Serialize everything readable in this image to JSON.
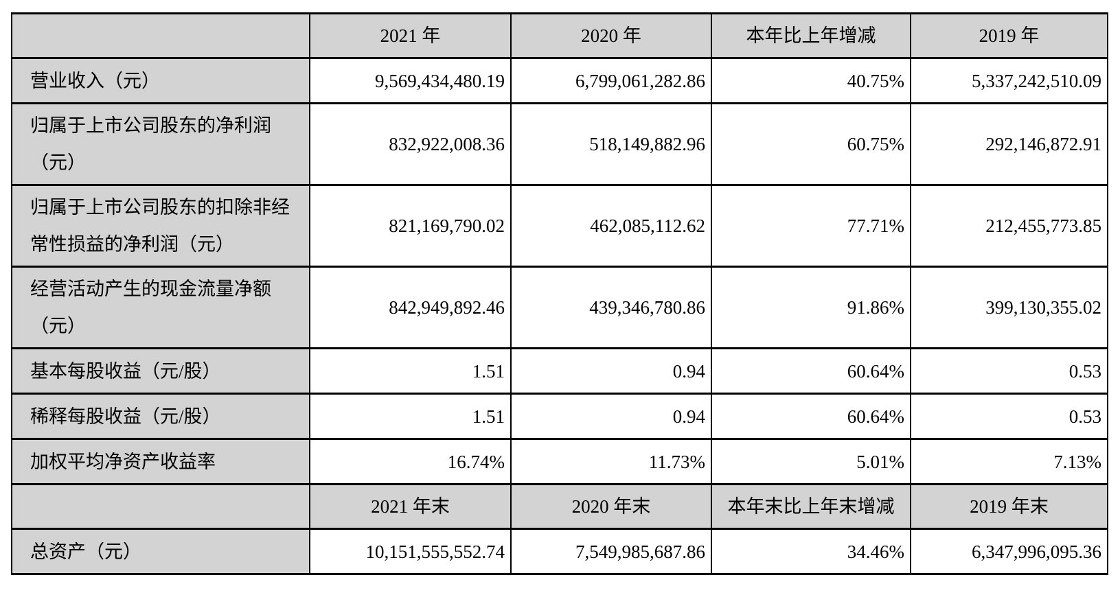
{
  "colors": {
    "header_bg": "#d3d3d3",
    "label_bg": "#d3d3d3",
    "cell_bg": "#ffffff",
    "border": "#000000",
    "text": "#000000"
  },
  "table": {
    "period1": {
      "corner": "",
      "headers": [
        "2021 年",
        "2020 年",
        "本年比上年增减",
        "2019 年"
      ],
      "rows": [
        {
          "label": "营业收入（元）",
          "values": [
            "9,569,434,480.19",
            "6,799,061,282.86",
            "40.75%",
            "5,337,242,510.09"
          ]
        },
        {
          "label": "归属于上市公司股东的净利润（元）",
          "values": [
            "832,922,008.36",
            "518,149,882.96",
            "60.75%",
            "292,146,872.91"
          ]
        },
        {
          "label": "归属于上市公司股东的扣除非经常性损益的净利润（元）",
          "values": [
            "821,169,790.02",
            "462,085,112.62",
            "77.71%",
            "212,455,773.85"
          ]
        },
        {
          "label": "经营活动产生的现金流量净额（元）",
          "values": [
            "842,949,892.46",
            "439,346,780.86",
            "91.86%",
            "399,130,355.02"
          ]
        },
        {
          "label": "基本每股收益（元/股）",
          "values": [
            "1.51",
            "0.94",
            "60.64%",
            "0.53"
          ]
        },
        {
          "label": "稀释每股收益（元/股）",
          "values": [
            "1.51",
            "0.94",
            "60.64%",
            "0.53"
          ]
        },
        {
          "label": "加权平均净资产收益率",
          "values": [
            "16.74%",
            "11.73%",
            "5.01%",
            "7.13%"
          ]
        }
      ]
    },
    "period2": {
      "corner": "",
      "headers": [
        "2021 年末",
        "2020 年末",
        "本年末比上年末增减",
        "2019 年末"
      ],
      "rows": [
        {
          "label": "总资产（元）",
          "values": [
            "10,151,555,552.74",
            "7,549,985,687.86",
            "34.46%",
            "6,347,996,095.36"
          ]
        }
      ]
    }
  }
}
